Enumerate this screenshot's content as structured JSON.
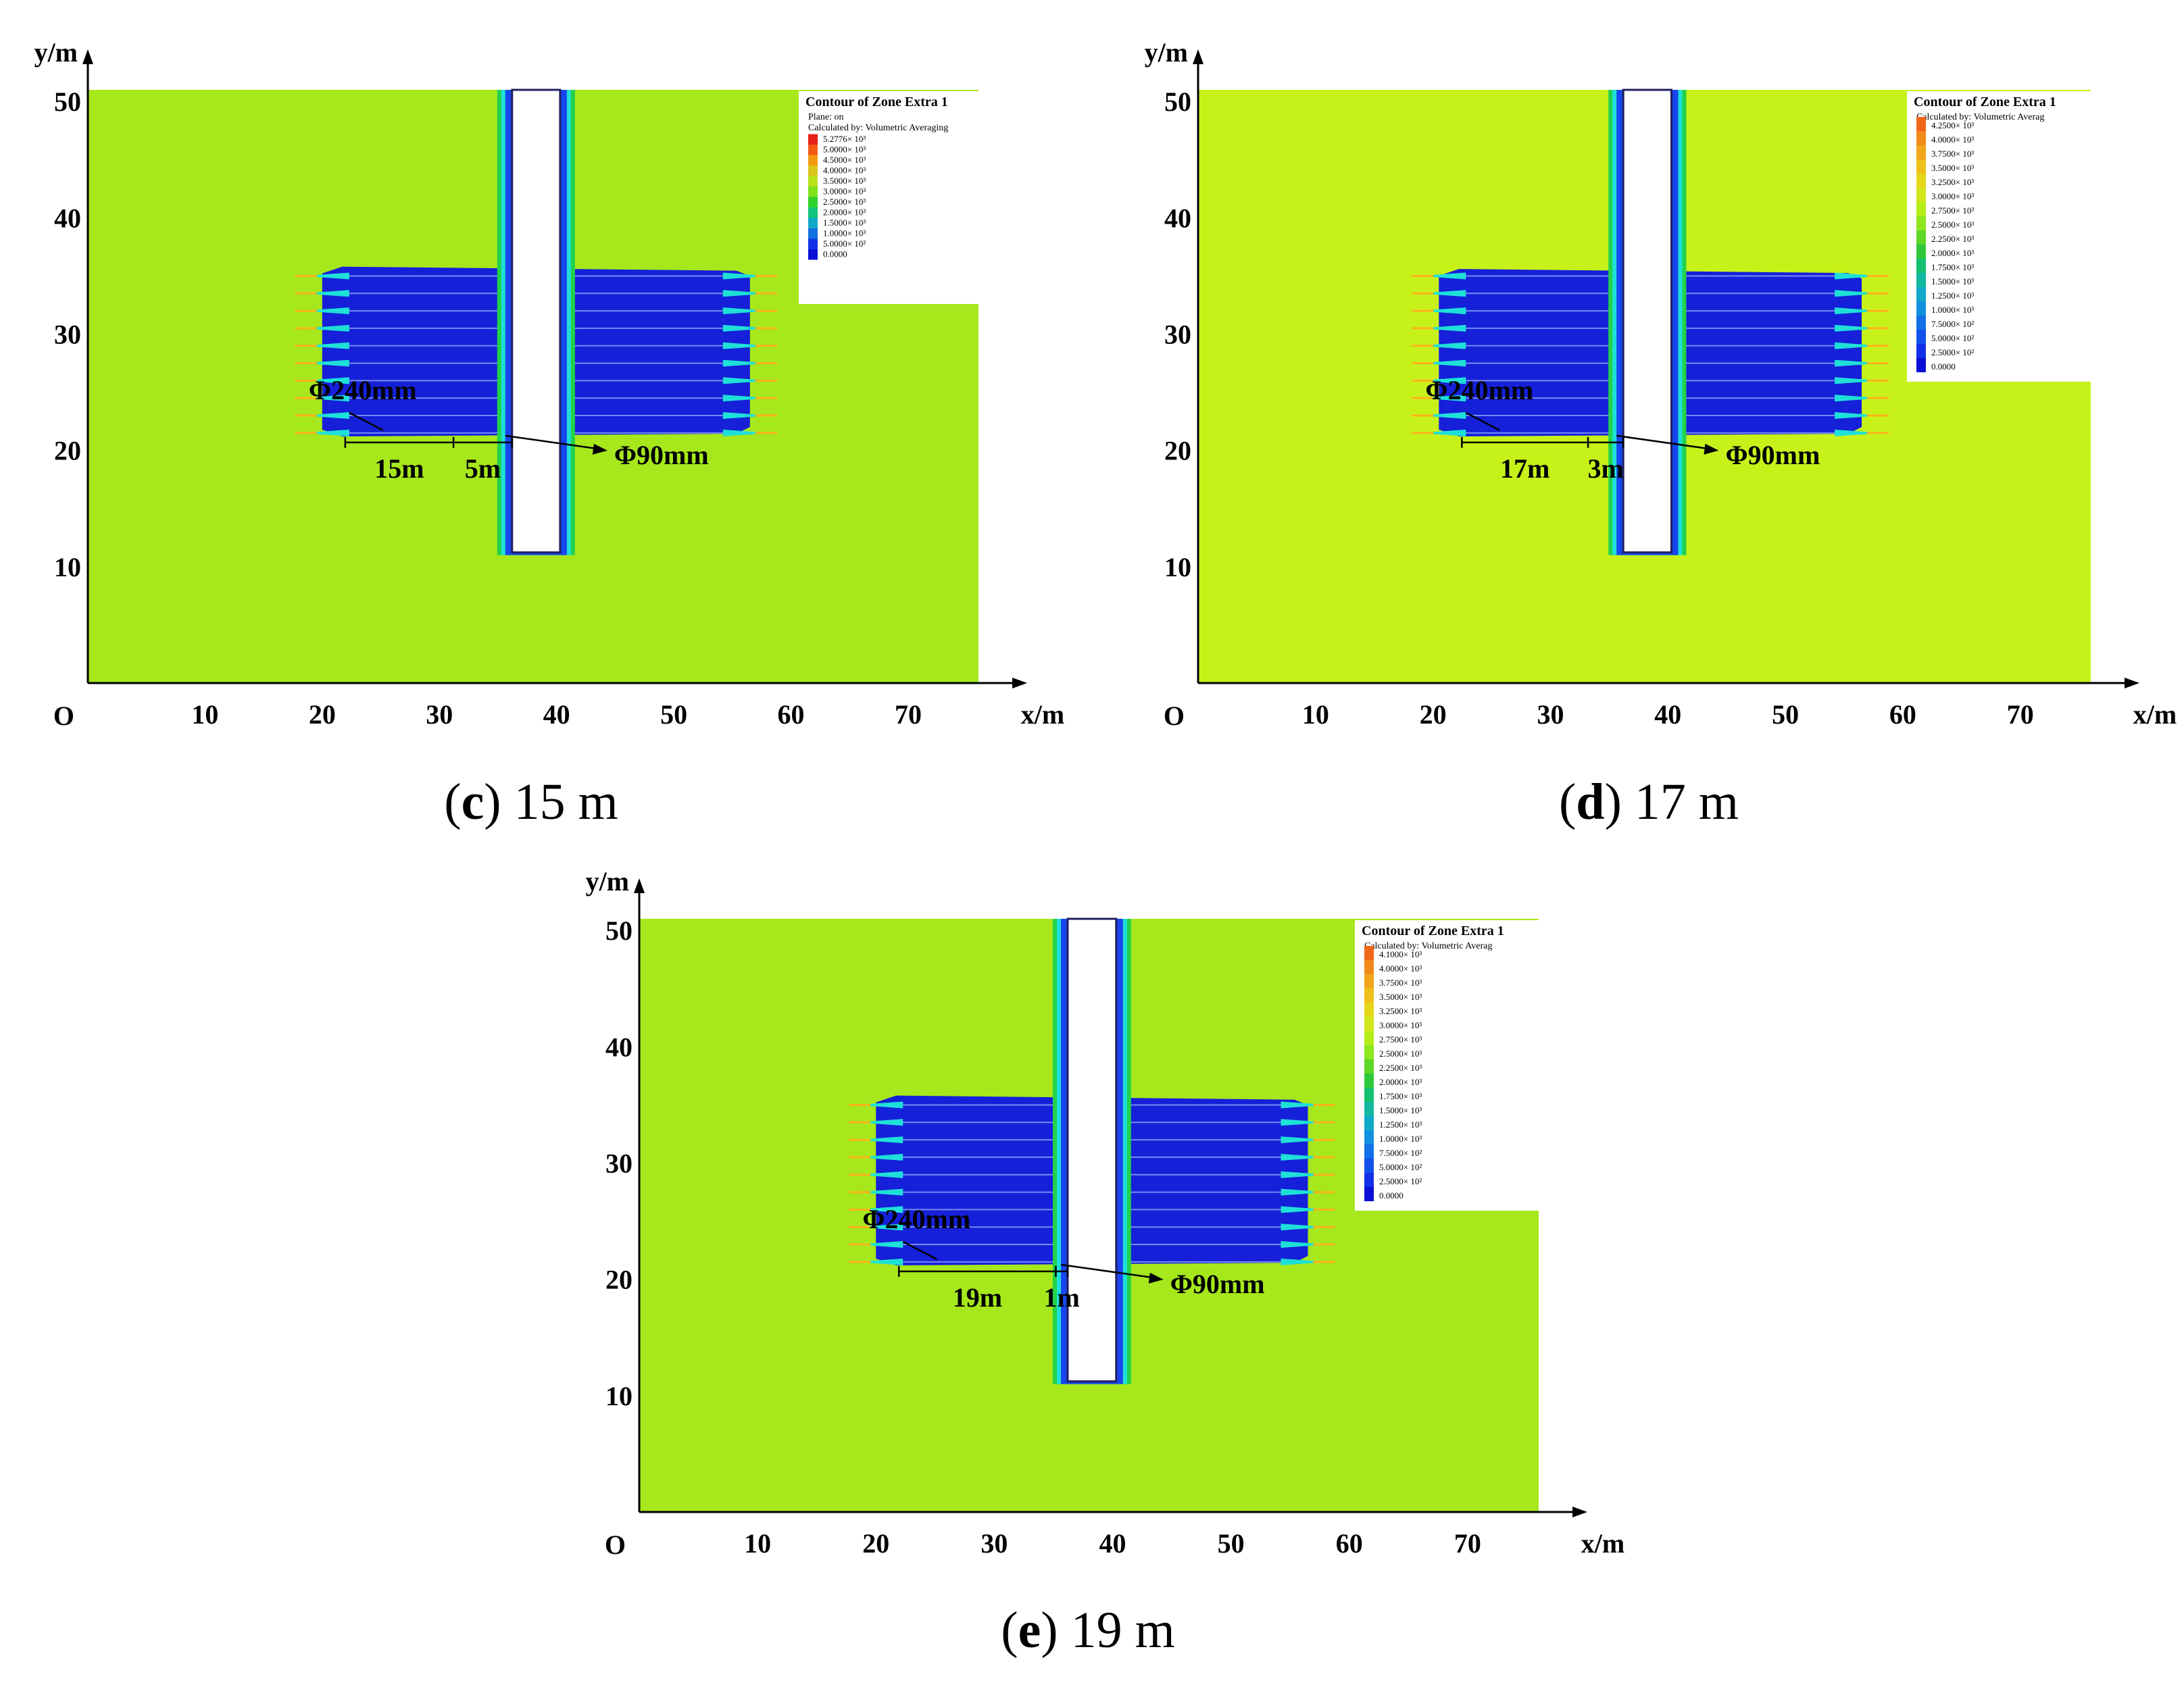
{
  "panels": [
    {
      "caption": {
        "letter": "c",
        "text": ") 15 m",
        "open": "("
      },
      "legend": {
        "title": "Contour of Zone Extra 1",
        "lines": [
          "Plane: on",
          "Calculated by: Volumetric Averaging"
        ],
        "levels": [
          "5.2776× 10³",
          "5.0000× 10³",
          "4.5000× 10³",
          "4.0000× 10³",
          "3.5000× 10³",
          "3.0000× 10³",
          "2.5000× 10³",
          "2.0000× 10³",
          "1.5000× 10³",
          "1.0000× 10³",
          "5.0000× 10²",
          "0.0000"
        ],
        "colors": [
          "#e8201a",
          "#f25a12",
          "#f39a12",
          "#d9c51a",
          "#b8e21a",
          "#7ee21c",
          "#2fd22a",
          "#12c47a",
          "#12a8c8",
          "#1270e0",
          "#1230e8",
          "#0a10d8"
        ]
      },
      "annotations": {
        "well": "Φ240mm",
        "hole": "Φ90mm",
        "left_span": "15m",
        "right_span": "5m"
      }
    },
    {
      "caption": {
        "letter": "d",
        "text": ") 17 m",
        "open": "("
      },
      "legend": {
        "title": "Contour of Zone Extra 1",
        "lines": [
          "Calculated by: Volumetric Averag"
        ],
        "levels": [
          "4.2500× 10³",
          "4.0000× 10³",
          "3.7500× 10³",
          "3.5000× 10³",
          "3.2500× 10³",
          "3.0000× 10³",
          "2.7500× 10³",
          "2.5000× 10³",
          "2.2500× 10³",
          "2.0000× 10³",
          "1.7500× 10³",
          "1.5000× 10³",
          "1.2500× 10³",
          "1.0000× 10³",
          "7.5000× 10²",
          "5.0000× 10²",
          "2.5000× 10²",
          "0.0000"
        ],
        "colors": [
          "#f2661a",
          "#f28a1a",
          "#f2a61a",
          "#f0c01a",
          "#e6d61a",
          "#d2e61a",
          "#b6ec1a",
          "#8ee61c",
          "#5ed628",
          "#2ec83a",
          "#16c070",
          "#12b8a0",
          "#12a8c8",
          "#1290e0",
          "#1270e8",
          "#1250ec",
          "#1230e8",
          "#0a10d8"
        ]
      },
      "annotations": {
        "well": "Φ240mm",
        "hole": "Φ90mm",
        "left_span": "17m",
        "right_span": "3m"
      }
    },
    {
      "caption": {
        "letter": "e",
        "text": ") 19 m",
        "open": "("
      },
      "legend": {
        "title": "Contour of Zone Extra 1",
        "lines": [
          "Calculated by: Volumetric Averag"
        ],
        "levels": [
          "4.1000× 10³",
          "4.0000× 10³",
          "3.7500× 10³",
          "3.5000× 10³",
          "3.2500× 10³",
          "3.0000× 10³",
          "2.7500× 10³",
          "2.5000× 10³",
          "2.2500× 10³",
          "2.0000× 10³",
          "1.7500× 10³",
          "1.5000× 10³",
          "1.2500× 10³",
          "1.0000× 10³",
          "7.5000× 10²",
          "5.0000× 10²",
          "2.5000× 10²",
          "0.0000"
        ],
        "colors": [
          "#f2661a",
          "#f28a1a",
          "#f2a61a",
          "#f0c01a",
          "#e6d61a",
          "#d2e61a",
          "#b6ec1a",
          "#8ee61c",
          "#5ed628",
          "#2ec83a",
          "#16c070",
          "#12b8a0",
          "#12a8c8",
          "#1290e0",
          "#1270e8",
          "#1250ec",
          "#1230e8",
          "#0a10d8"
        ]
      },
      "annotations": {
        "well": "Φ240mm",
        "hole": "Φ90mm",
        "left_span": "19m",
        "right_span": "1m"
      }
    }
  ],
  "colors": {
    "background_c": "#a6e81c",
    "background_d": "#c6f21a",
    "background_e": "#a6e81c",
    "drained": "#1520d8",
    "blue_edge": "#1846ee",
    "cyan_edge": "#1ee0d8",
    "green_edge": "#22d24a",
    "orange_tip": "#ffb21a"
  },
  "chart_data": [
    {
      "type": "heatmap",
      "panel": "c",
      "xlabel": "x/m",
      "ylabel": "y/m",
      "origin_label": "O",
      "xlim": [
        0,
        76
      ],
      "ylim": [
        0,
        51
      ],
      "xticks": [
        10,
        20,
        30,
        40,
        50,
        60,
        70
      ],
      "yticks": [
        10,
        20,
        30,
        40,
        50
      ],
      "roadway": {
        "x": [
          36.2,
          40.3
        ],
        "y": [
          11,
          51
        ]
      },
      "drainage_zone": {
        "x": [
          20,
          56.5
        ],
        "y": [
          21.2,
          35.8
        ]
      },
      "borehole_rows_y": [
        21.5,
        23,
        24.5,
        26,
        27.5,
        29,
        30.5,
        32,
        33.5,
        35
      ],
      "hole_spacing_m": 15,
      "gap_to_roadway_m": 5,
      "legend_unit_exponent": 3
    },
    {
      "type": "heatmap",
      "panel": "d",
      "xlabel": "x/m",
      "ylabel": "y/m",
      "origin_label": "O",
      "xlim": [
        0,
        76
      ],
      "ylim": [
        0,
        51
      ],
      "xticks": [
        10,
        20,
        30,
        40,
        50,
        60,
        70
      ],
      "yticks": [
        10,
        20,
        30,
        40,
        50
      ],
      "roadway": {
        "x": [
          36.2,
          40.3
        ],
        "y": [
          11,
          51
        ]
      },
      "drainage_zone": {
        "x": [
          20.5,
          56.5
        ],
        "y": [
          21.2,
          35.6
        ]
      },
      "borehole_rows_y": [
        21.5,
        23,
        24.5,
        26,
        27.5,
        29,
        30.5,
        32,
        33.5,
        35
      ],
      "hole_spacing_m": 17,
      "gap_to_roadway_m": 3,
      "legend_unit_exponent": 3
    },
    {
      "type": "heatmap",
      "panel": "e",
      "xlabel": "x/m",
      "ylabel": "y/m",
      "origin_label": "O",
      "xlim": [
        0,
        76
      ],
      "ylim": [
        0,
        51
      ],
      "xticks": [
        10,
        20,
        30,
        40,
        50,
        60,
        70
      ],
      "yticks": [
        10,
        20,
        30,
        40,
        50
      ],
      "roadway": {
        "x": [
          36.2,
          40.3
        ],
        "y": [
          11,
          51
        ]
      },
      "drainage_zone": {
        "x": [
          20,
          56.5
        ],
        "y": [
          21.2,
          35.8
        ]
      },
      "borehole_rows_y": [
        21.5,
        23,
        24.5,
        26,
        27.5,
        29,
        30.5,
        32,
        33.5,
        35
      ],
      "hole_spacing_m": 19,
      "gap_to_roadway_m": 1,
      "legend_unit_exponent": 3
    }
  ]
}
